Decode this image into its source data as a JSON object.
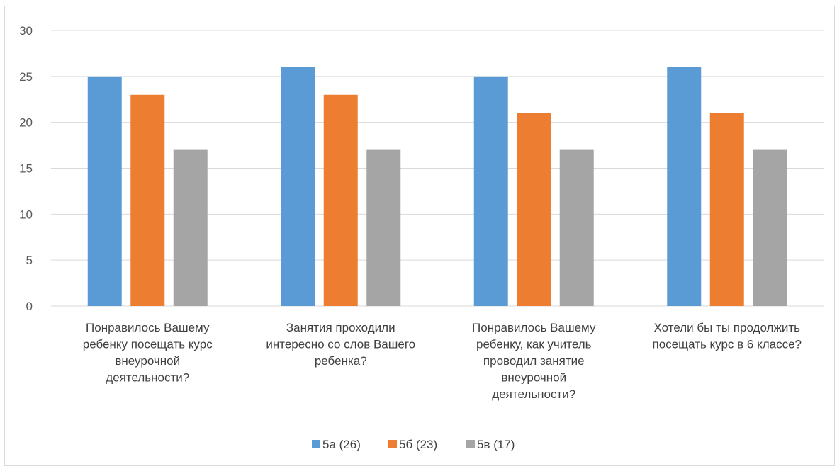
{
  "chart_data": {
    "type": "bar",
    "title": "",
    "xlabel": "",
    "ylabel": "",
    "ylim": [
      0,
      30
    ],
    "yticks": [
      0,
      5,
      10,
      15,
      20,
      25,
      30
    ],
    "grid": true,
    "legend_position": "bottom",
    "categories": [
      [
        "Понравилось Вашему",
        "ребенку посещать курс",
        "внеурочной",
        "деятельности?"
      ],
      [
        "Занятия проходили",
        "интересно со слов Вашего",
        "ребенка?"
      ],
      [
        "Понравилось Вашему",
        "ребенку, как учитель",
        "проводил занятие",
        "внеурочной",
        "деятельности?"
      ],
      [
        "Хотели бы ты продолжить",
        "посещать курс в 6 классе?"
      ]
    ],
    "series": [
      {
        "name": "5а (26)",
        "color": "#5b9bd5",
        "values": [
          25,
          26,
          25,
          26
        ]
      },
      {
        "name": "5б (23)",
        "color": "#ed7d31",
        "values": [
          23,
          23,
          21,
          21
        ]
      },
      {
        "name": "5в (17)",
        "color": "#a5a5a5",
        "values": [
          17,
          17,
          17,
          17
        ]
      }
    ]
  }
}
